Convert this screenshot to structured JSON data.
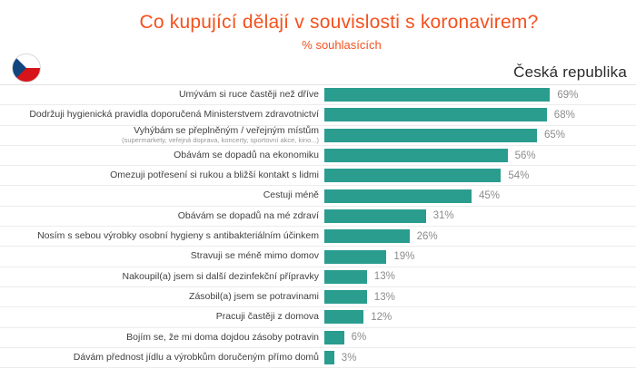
{
  "header": {
    "title": "Co kupující dělají v souvislosti s koronavirem?",
    "subtitle": "% souhlasících",
    "country": "Česká republika",
    "flag_icon": "czech-republic-flag"
  },
  "colors": {
    "title_accent": "#F4511E",
    "bar_fill": "#2A9D8F",
    "label_text": "#3F3F3F",
    "value_text": "#8C8C8C",
    "separator": "#ECECEC",
    "flag_red": "#D7141A",
    "flag_blue": "#11457E",
    "flag_white": "#FFFFFF"
  },
  "chart_data": {
    "type": "bar",
    "orientation": "horizontal",
    "title": "Co kupující dělají v souvislosti s koronavirem?",
    "subtitle": "% souhlasících",
    "xlabel": "",
    "ylabel": "",
    "unit": "%",
    "xlim": [
      0,
      100
    ],
    "grid": false,
    "legend": false,
    "value_labels_shown": true,
    "categories": [
      "Umývám si ruce častěji než dříve",
      "Dodržuji hygienická pravidla doporučená Ministerstvem zdravotnictví",
      "Vyhýbám se přeplněným / veřejným místům",
      "Obávám se dopadů na ekonomiku",
      "Omezuji potřesení si rukou a bližší kontakt s lidmi",
      "Cestuji méně",
      "Obávám se dopadů na mé zdraví",
      "Nosím s sebou výrobky osobní hygieny s antibakteriálním účinkem",
      "Stravuji se méně mimo domov",
      "Nakoupil(a) jsem si další dezinfekční přípravky",
      "Zásobil(a) jsem se potravinami",
      "Pracuji častěji z domova",
      "Bojím se, že mi doma dojdou zásoby potravin",
      "Dávám přednost jídlu a výrobkům doručeným přímo domů"
    ],
    "category_notes": [
      "",
      "",
      "(supermarkety, veřejná doprava, koncerty, sportovní akce, kino...)",
      "",
      "",
      "",
      "",
      "",
      "",
      "",
      "",
      "",
      "",
      ""
    ],
    "values": [
      69,
      68,
      65,
      56,
      54,
      45,
      31,
      26,
      19,
      13,
      13,
      12,
      6,
      3
    ],
    "value_labels": [
      "69%",
      "68%",
      "65%",
      "56%",
      "54%",
      "45%",
      "31%",
      "26%",
      "19%",
      "13%",
      "13%",
      "12%",
      "6%",
      "3%"
    ]
  }
}
